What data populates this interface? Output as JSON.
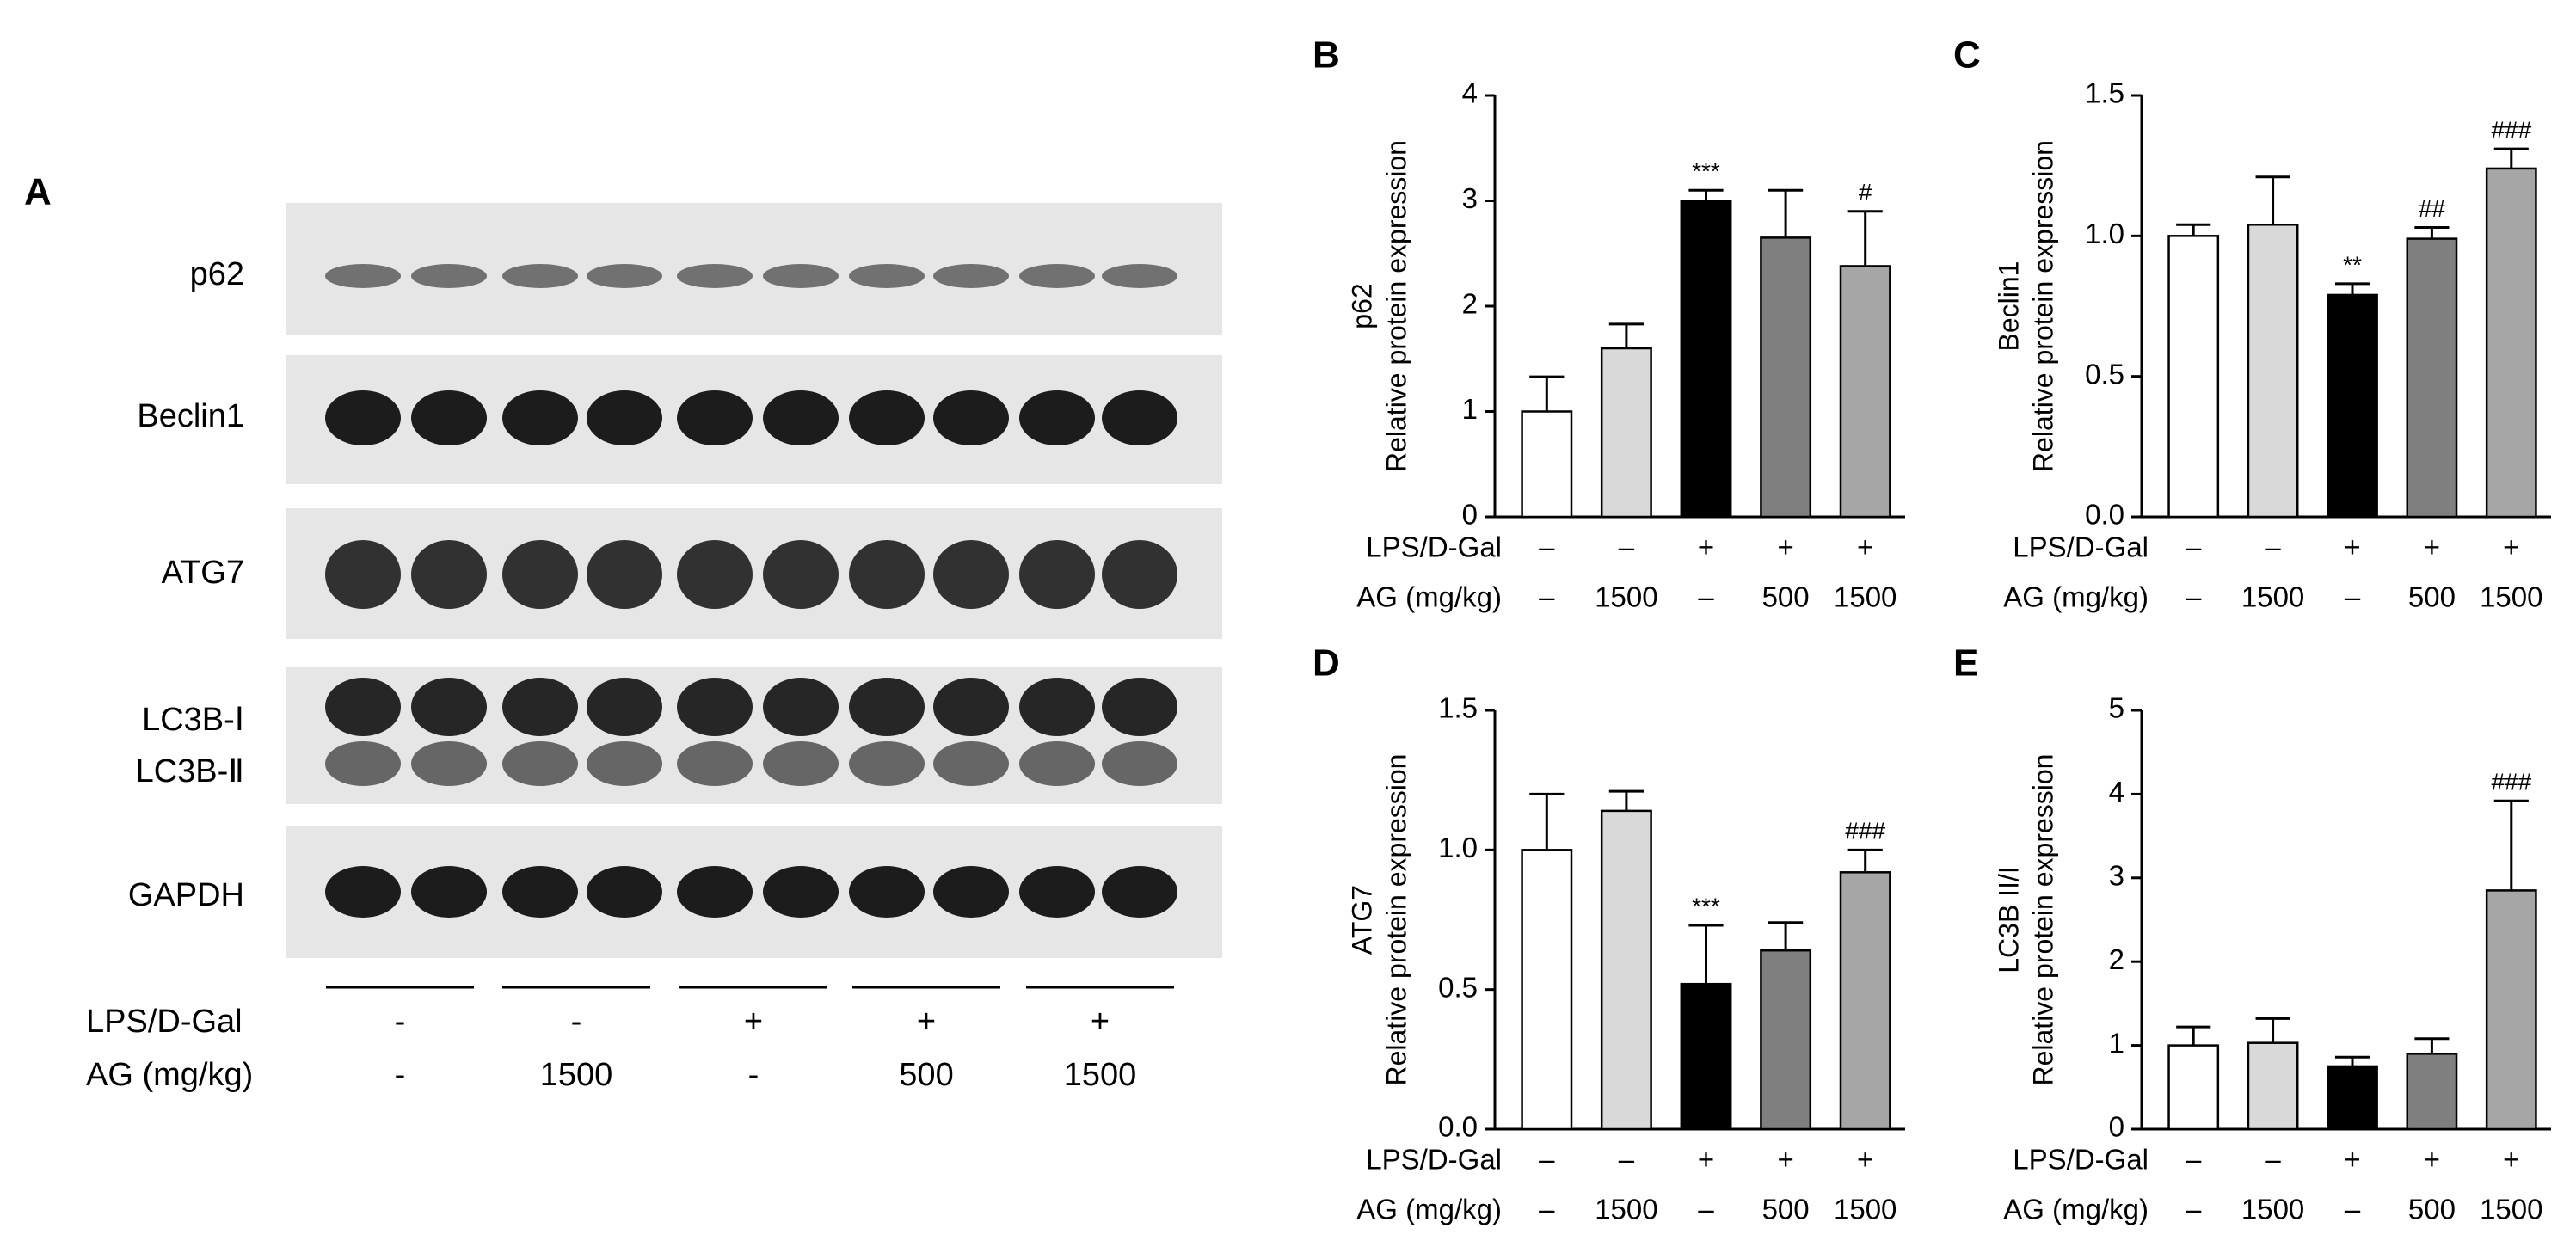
{
  "blot": {
    "panel_label": "A",
    "bands": [
      "p62",
      "Beclin1",
      "ATG7",
      "LC3B-Ⅰ",
      "LC3B-Ⅱ",
      "GAPDH"
    ],
    "conditions": [
      {
        "name": "LPS/D-Gal",
        "values": [
          "-",
          "-",
          "+",
          "+",
          "+"
        ]
      },
      {
        "name": "AG (mg/kg)",
        "values": [
          "-",
          "1500",
          "-",
          "500",
          "1500"
        ]
      }
    ]
  },
  "chart_data": [
    {
      "type": "bar",
      "panel_label": "B",
      "ylabel": [
        "p62",
        "Relative protein expression"
      ],
      "conditions": [
        {
          "name": "LPS/D-Gal",
          "values": [
            "–",
            "–",
            "+",
            "+",
            "+"
          ]
        },
        {
          "name": "AG (mg/kg)",
          "values": [
            "–",
            "1500",
            "–",
            "500",
            "1500"
          ]
        }
      ],
      "values": [
        1.0,
        1.6,
        3.0,
        2.65,
        2.38
      ],
      "errors": [
        0.33,
        0.23,
        0.1,
        0.45,
        0.52
      ],
      "annotations": [
        null,
        null,
        "***",
        null,
        "#"
      ],
      "colors": [
        "#ffffff",
        "#d9d9d9",
        "#000000",
        "#7f7f7f",
        "#a6a6a6"
      ],
      "ylim": [
        0,
        4
      ],
      "yticks": [
        0,
        1,
        2,
        3,
        4
      ]
    },
    {
      "type": "bar",
      "panel_label": "C",
      "ylabel": [
        "Beclin1",
        "Relative protein expression"
      ],
      "conditions": [
        {
          "name": "LPS/D-Gal",
          "values": [
            "–",
            "–",
            "+",
            "+",
            "+"
          ]
        },
        {
          "name": "AG (mg/kg)",
          "values": [
            "–",
            "1500",
            "–",
            "500",
            "1500"
          ]
        }
      ],
      "values": [
        1.0,
        1.04,
        0.79,
        0.99,
        1.24
      ],
      "errors": [
        0.04,
        0.17,
        0.04,
        0.04,
        0.07
      ],
      "annotations": [
        null,
        null,
        "**",
        "##",
        "###"
      ],
      "colors": [
        "#ffffff",
        "#d9d9d9",
        "#000000",
        "#7f7f7f",
        "#a6a6a6"
      ],
      "ylim": [
        0,
        1.5
      ],
      "yticks": [
        {
          "value": 0,
          "label": "0.0"
        },
        {
          "value": 0.5,
          "label": "0.5"
        },
        {
          "value": 1,
          "label": "1.0"
        },
        {
          "value": 1.5,
          "label": "1.5"
        }
      ]
    },
    {
      "type": "bar",
      "panel_label": "D",
      "ylabel": [
        "ATG7",
        "Relative protein expression"
      ],
      "conditions": [
        {
          "name": "LPS/D-Gal",
          "values": [
            "–",
            "–",
            "+",
            "+",
            "+"
          ]
        },
        {
          "name": "AG (mg/kg)",
          "values": [
            "–",
            "1500",
            "–",
            "500",
            "1500"
          ]
        }
      ],
      "values": [
        1.0,
        1.14,
        0.52,
        0.64,
        0.92
      ],
      "errors": [
        0.2,
        0.07,
        0.21,
        0.1,
        0.08
      ],
      "annotations": [
        null,
        null,
        "***",
        null,
        "###"
      ],
      "colors": [
        "#ffffff",
        "#d9d9d9",
        "#000000",
        "#7f7f7f",
        "#a6a6a6"
      ],
      "ylim": [
        0,
        1.5
      ],
      "yticks": [
        {
          "value": 0,
          "label": "0.0"
        },
        {
          "value": 0.5,
          "label": "0.5"
        },
        {
          "value": 1,
          "label": "1.0"
        },
        {
          "value": 1.5,
          "label": "1.5"
        }
      ]
    },
    {
      "type": "bar",
      "panel_label": "E",
      "ylabel": [
        "LC3B II/I",
        "Relative protein expression"
      ],
      "conditions": [
        {
          "name": "LPS/D-Gal",
          "values": [
            "–",
            "–",
            "+",
            "+",
            "+"
          ]
        },
        {
          "name": "AG (mg/kg)",
          "values": [
            "–",
            "1500",
            "–",
            "500",
            "1500"
          ]
        }
      ],
      "values": [
        1.0,
        1.03,
        0.75,
        0.9,
        2.85
      ],
      "errors": [
        0.22,
        0.29,
        0.11,
        0.18,
        1.07
      ],
      "annotations": [
        null,
        null,
        null,
        null,
        "###"
      ],
      "colors": [
        "#ffffff",
        "#d9d9d9",
        "#000000",
        "#7f7f7f",
        "#a6a6a6"
      ],
      "ylim": [
        0,
        5
      ],
      "yticks": [
        0,
        1,
        2,
        3,
        4,
        5
      ]
    }
  ]
}
